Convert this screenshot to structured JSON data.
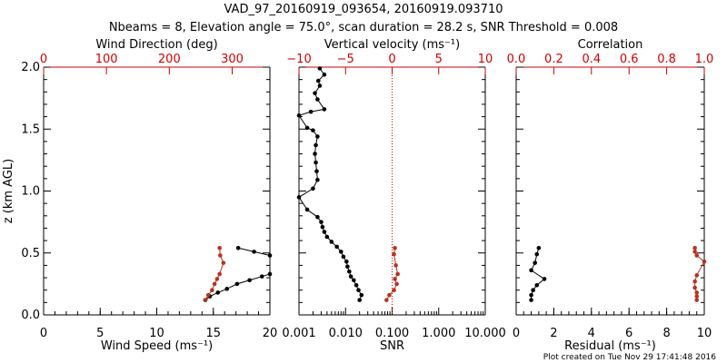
{
  "header": {
    "title": "VAD_97_20160919_093654, 20160919.093710",
    "subtitle_line1": "Nbeams = 8, Elevation angle = 75.0°, scan duration = 28.2 s, SNR Threshold = 0.008"
  },
  "footer": {
    "credit": "Plot created on Tue Nov 29 17:41:48 2016"
  },
  "colors": {
    "black": "#000000",
    "red": "#d00000",
    "dark_red": "#b8321f"
  },
  "chart_data": [
    {
      "type": "line",
      "panel": "wind",
      "xlabel": "Wind Speed (ms⁻¹)",
      "xlim": [
        0,
        20
      ],
      "xticks": [
        "0",
        "5",
        "10",
        "15",
        "20"
      ],
      "top_xlabel": "Wind Direction (deg)",
      "top_xlim": [
        0,
        360
      ],
      "top_xticks": [
        "0",
        "100",
        "200",
        "300"
      ],
      "ylabel": "z (km AGL)",
      "ylim": [
        0.0,
        2.0
      ],
      "yticks": [
        "0.0",
        "0.5",
        "1.0",
        "1.5",
        "2.0"
      ],
      "series": [
        {
          "axis": "bottom",
          "color": "#000000",
          "x": [
            14.3,
            14.7,
            15.4,
            16.2,
            17.1,
            18.2,
            19.3,
            20.0
          ],
          "y": [
            0.12,
            0.15,
            0.18,
            0.21,
            0.25,
            0.28,
            0.31,
            0.33
          ]
        },
        {
          "axis": "bottom",
          "color": "#000000",
          "x": [
            17.2,
            18.6,
            20.0
          ],
          "y": [
            0.54,
            0.51,
            0.48
          ]
        },
        {
          "axis": "top",
          "color": "#b8321f",
          "x": [
            257,
            262,
            268,
            272,
            276,
            280,
            286,
            281,
            280
          ],
          "y": [
            0.12,
            0.16,
            0.2,
            0.25,
            0.29,
            0.33,
            0.42,
            0.48,
            0.54
          ]
        }
      ]
    },
    {
      "type": "line",
      "panel": "snr",
      "xlabel": "SNR",
      "xscale": "log",
      "xlim": [
        0.001,
        10.0
      ],
      "xticks": [
        "0.001",
        "0.010",
        "0.100",
        "1.000",
        "10.000"
      ],
      "top_xlabel": "Vertical velocity (ms⁻¹)",
      "top_xlim": [
        -10,
        10
      ],
      "top_xticks": [
        "−10",
        "−5",
        "0",
        "5",
        "10"
      ],
      "reference_line": {
        "axis": "top",
        "x": 0
      },
      "series": [
        {
          "axis": "bottom",
          "color": "#000000",
          "x": [
            0.02,
            0.022,
            0.019,
            0.017,
            0.015,
            0.013,
            0.012,
            0.011,
            0.0105,
            0.009,
            0.008,
            0.0065,
            0.005,
            0.004,
            0.0035,
            0.0032,
            0.003,
            0.0025,
            0.0015,
            0.001,
            0.002,
            0.0025,
            0.0024,
            0.0023,
            0.0022,
            0.0023,
            0.0025,
            0.002,
            0.0015,
            0.001,
            0.0018,
            0.0035,
            0.0025,
            0.0022,
            0.0028,
            0.0026,
            0.0035,
            0.0028
          ],
          "y": [
            0.12,
            0.16,
            0.2,
            0.24,
            0.28,
            0.31,
            0.35,
            0.39,
            0.43,
            0.47,
            0.51,
            0.55,
            0.59,
            0.63,
            0.67,
            0.71,
            0.75,
            0.79,
            0.85,
            0.95,
            1.02,
            1.09,
            1.16,
            1.23,
            1.3,
            1.37,
            1.44,
            1.49,
            1.51,
            1.61,
            1.64,
            1.66,
            1.74,
            1.79,
            1.85,
            1.89,
            1.94,
            1.99
          ]
        },
        {
          "axis": "top",
          "color": "#b8321f",
          "x": [
            -0.6,
            -0.3,
            0.2,
            0.5,
            0.3,
            0.6,
            0.4,
            0.2,
            0.3
          ],
          "y": [
            0.12,
            0.16,
            0.2,
            0.25,
            0.29,
            0.33,
            0.4,
            0.49,
            0.54
          ]
        }
      ]
    },
    {
      "type": "line",
      "panel": "residual",
      "xlabel": "Residual (ms⁻¹)",
      "xlim": [
        0,
        10
      ],
      "xticks": [
        "0",
        "2",
        "4",
        "6",
        "8",
        "10"
      ],
      "top_xlabel": "Correlation",
      "top_xlim": [
        0.0,
        1.0
      ],
      "top_xticks": [
        "0.0",
        "0.2",
        "0.4",
        "0.6",
        "0.8",
        "1.0"
      ],
      "series": [
        {
          "axis": "bottom",
          "color": "#000000",
          "x": [
            0.8,
            0.8,
            0.9,
            1.1,
            1.5,
            0.8,
            1.0,
            1.1,
            1.2
          ],
          "y": [
            0.12,
            0.16,
            0.2,
            0.24,
            0.29,
            0.36,
            0.42,
            0.49,
            0.54
          ]
        },
        {
          "axis": "top",
          "color": "#b8321f",
          "x": [
            0.96,
            0.96,
            0.96,
            0.95,
            0.95,
            0.96,
            1.0,
            0.96,
            0.95,
            0.95
          ],
          "y": [
            0.12,
            0.15,
            0.18,
            0.22,
            0.27,
            0.32,
            0.43,
            0.48,
            0.51,
            0.54
          ]
        }
      ]
    }
  ]
}
